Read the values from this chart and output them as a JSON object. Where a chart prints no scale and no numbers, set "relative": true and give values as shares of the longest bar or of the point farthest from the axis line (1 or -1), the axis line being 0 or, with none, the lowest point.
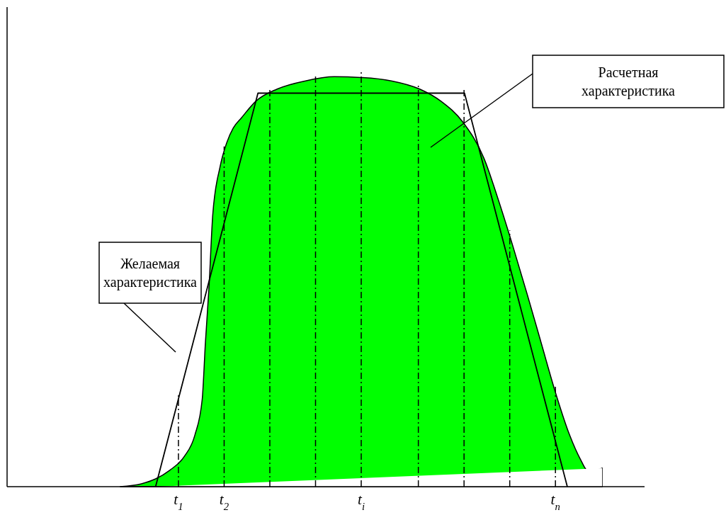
{
  "chart_data": {
    "type": "area",
    "relative": true,
    "xlim": [
      -2.75,
      11.2
    ],
    "xticks": [
      {
        "value": 1,
        "label": "t$_{1}$"
      },
      {
        "value": 2,
        "label": "t$_{2}$"
      },
      {
        "value": 5,
        "label": "t$_{i}$"
      },
      {
        "value": 9.25,
        "label": "t$_{n}$"
      }
    ],
    "series": [
      {
        "color": "#00ff00",
        "x": [
          -0.28,
          0.19,
          0.5,
          0.81,
          1.13,
          1.36,
          1.52,
          1.59,
          1.67,
          1.75,
          1.91,
          2.06,
          2.2,
          2.38,
          2.69,
          3.16,
          3.78,
          4.41,
          5.03,
          5.66,
          6.28,
          6.75,
          7.22,
          7.69,
          8.0,
          8.31,
          8.63,
          8.94,
          9.25,
          9.56,
          9.8,
          9.95,
          10.11,
          10.27
        ],
        "values": [
          0,
          0.007,
          0.019,
          0.04,
          0.074,
          0.126,
          0.213,
          0.351,
          0.489,
          0.662,
          0.78,
          0.84,
          0.875,
          0.9,
          0.94,
          0.97,
          0.99,
          1,
          0.998,
          0.99,
          0.97,
          0.94,
          0.89,
          0.8,
          0.7,
          0.59,
          0.47,
          0.35,
          0.23,
          0.126,
          0.066,
          0.04,
          0.04,
          0.045
        ]
      },
      {
        "color": "#ffffff",
        "x": [
          0.5,
          10.27
        ],
        "values": [
          0,
          0.045
        ]
      },
      {
        "type": "line",
        "color": "#000000",
        "x": [
          0.5,
          2.74,
          7.26,
          9.51
        ],
        "values": [
          0,
          0.96,
          0.96,
          0
        ]
      }
    ],
    "ref_lines": [
      {
        "axis": "x",
        "value": 1,
        "color": "#000000",
        "line_style": "dashed"
      },
      {
        "axis": "x",
        "value": 2,
        "color": "#000000",
        "line_style": "dashed"
      },
      {
        "axis": "x",
        "value": 3,
        "color": "#000000",
        "line_style": "dashed"
      },
      {
        "axis": "x",
        "value": 4,
        "color": "#000000",
        "line_style": "dashed"
      },
      {
        "axis": "x",
        "value": 5,
        "color": "#000000",
        "line_style": "dashed"
      },
      {
        "axis": "x",
        "value": 6.25,
        "color": "#000000",
        "line_style": "dashed"
      },
      {
        "axis": "x",
        "value": 7.25,
        "color": "#000000",
        "line_style": "dashed"
      },
      {
        "axis": "x",
        "value": 8.25,
        "color": "#000000",
        "line_style": "dashed"
      },
      {
        "axis": "x",
        "value": 9.25,
        "color": "#000000",
        "line_style": "dashed"
      }
    ],
    "annotations": [
      "Желаемая\nхарактеристика",
      "Расчетная\nхарактеристика"
    ]
  }
}
